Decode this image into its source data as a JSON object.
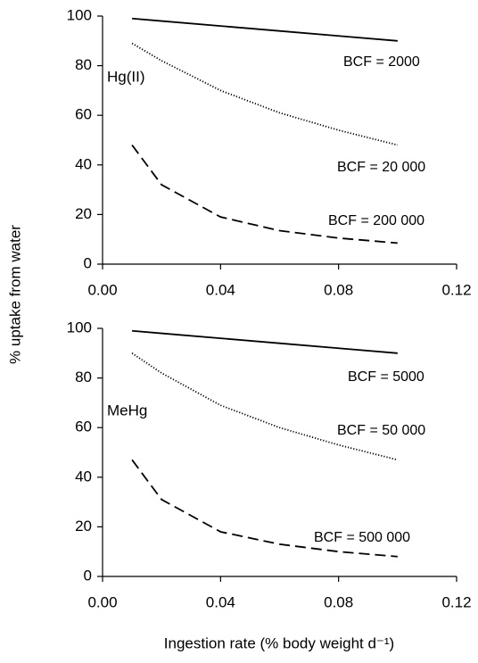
{
  "chart_data": [
    {
      "type": "line",
      "y_label": "% uptake from water",
      "panel_label": "Hg(II)",
      "x": [
        0.01,
        0.02,
        0.04,
        0.06,
        0.08,
        0.1
      ],
      "series": [
        {
          "name": "BCF = 2000",
          "color": "#000000",
          "dash": "solid",
          "values": [
            99,
            98,
            96,
            94,
            92,
            90
          ]
        },
        {
          "name": "BCF = 20 000",
          "color": "#000000",
          "dash": "dotted",
          "values": [
            89,
            82,
            70,
            61,
            54,
            48
          ]
        },
        {
          "name": "BCF = 200 000",
          "color": "#000000",
          "dash": "dashed",
          "values": [
            48,
            32,
            19,
            13.5,
            10.5,
            8.5
          ]
        }
      ],
      "xlim": [
        0,
        0.12
      ],
      "xticks": [
        {
          "value": 0,
          "label": "0.00"
        },
        {
          "value": 0.04,
          "label": "0.04"
        },
        {
          "value": 0.08,
          "label": "0.08"
        },
        {
          "value": 0.12,
          "label": "0.12"
        }
      ],
      "ylim": [
        0,
        100
      ],
      "yticks": [
        0,
        20,
        40,
        60,
        80,
        100
      ],
      "grid": false
    },
    {
      "type": "line",
      "x_label": "Ingestion rate (% body weight d⁻¹)",
      "panel_label": "MeHg",
      "x": [
        0.01,
        0.02,
        0.04,
        0.06,
        0.08,
        0.1
      ],
      "series": [
        {
          "name": "BCF = 5000",
          "color": "#000000",
          "dash": "solid",
          "values": [
            99,
            98,
            96,
            94,
            92,
            90
          ]
        },
        {
          "name": "BCF = 50 000",
          "color": "#000000",
          "dash": "dotted",
          "values": [
            90,
            82,
            69,
            60,
            53,
            47
          ]
        },
        {
          "name": "BCF = 500 000",
          "color": "#000000",
          "dash": "dashed",
          "values": [
            47,
            31,
            18,
            13,
            10,
            8
          ]
        }
      ],
      "xlim": [
        0,
        0.12
      ],
      "xticks": [
        {
          "value": 0,
          "label": "0.00"
        },
        {
          "value": 0.04,
          "label": "0.04"
        },
        {
          "value": 0.08,
          "label": "0.08"
        },
        {
          "value": 0.12,
          "label": "0.12"
        }
      ],
      "ylim": [
        0,
        100
      ],
      "yticks": [
        0,
        20,
        40,
        60,
        80,
        100
      ],
      "grid": false
    }
  ]
}
